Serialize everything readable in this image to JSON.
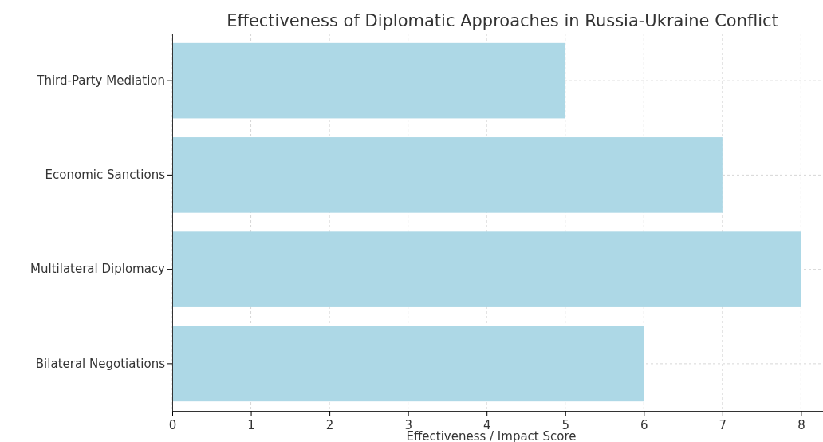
{
  "chart_data": {
    "type": "bar",
    "orientation": "horizontal",
    "title": "Effectiveness of Diplomatic Approaches in Russia-Ukraine Conflict",
    "xlabel": "Effectiveness / Impact Score",
    "categories": [
      "Third-Party Mediation",
      "Economic Sanctions",
      "Multilateral Diplomacy",
      "Bilateral Negotiations"
    ],
    "values": [
      5,
      7,
      8,
      6
    ],
    "color": "#add8e6",
    "xlim": [
      0,
      8.28
    ],
    "xticks": [
      0,
      1,
      2,
      3,
      4,
      5,
      6,
      7,
      8
    ],
    "grid": true
  }
}
